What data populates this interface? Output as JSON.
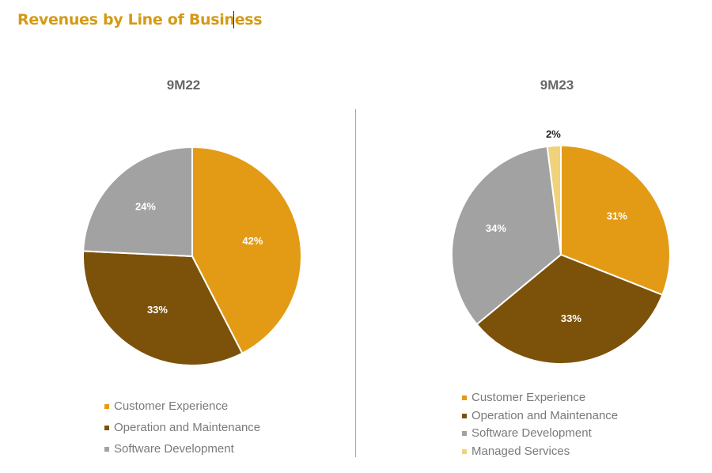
{
  "header": {
    "title": "Revenues by Line of Business"
  },
  "colors": {
    "customer_experience": "#e39b16",
    "operation_maintenance": "#7c520a",
    "software_development": "#a2a2a2",
    "managed_services": "#f0d27a",
    "title": "#d59a14"
  },
  "chart_data": [
    {
      "type": "pie",
      "title": "9M22",
      "series": [
        {
          "name": "Customer Experience",
          "value": 42,
          "label": "42%"
        },
        {
          "name": "Operation and Maintenance",
          "value": 33,
          "label": "33%"
        },
        {
          "name": "Software Development",
          "value": 24,
          "label": "24%"
        }
      ],
      "legend": [
        "Customer Experience",
        "Operation and Maintenance",
        "Software Development"
      ],
      "legend_position": "bottom"
    },
    {
      "type": "pie",
      "title": "9M23",
      "series": [
        {
          "name": "Customer Experience",
          "value": 31,
          "label": "31%"
        },
        {
          "name": "Operation and Maintenance",
          "value": 33,
          "label": "33%"
        },
        {
          "name": "Software Development",
          "value": 34,
          "label": "34%"
        },
        {
          "name": "Managed Services",
          "value": 2,
          "label": "2%"
        }
      ],
      "legend": [
        "Customer Experience",
        "Operation and Maintenance",
        "Software Development",
        "Managed Services"
      ],
      "legend_position": "bottom"
    }
  ]
}
